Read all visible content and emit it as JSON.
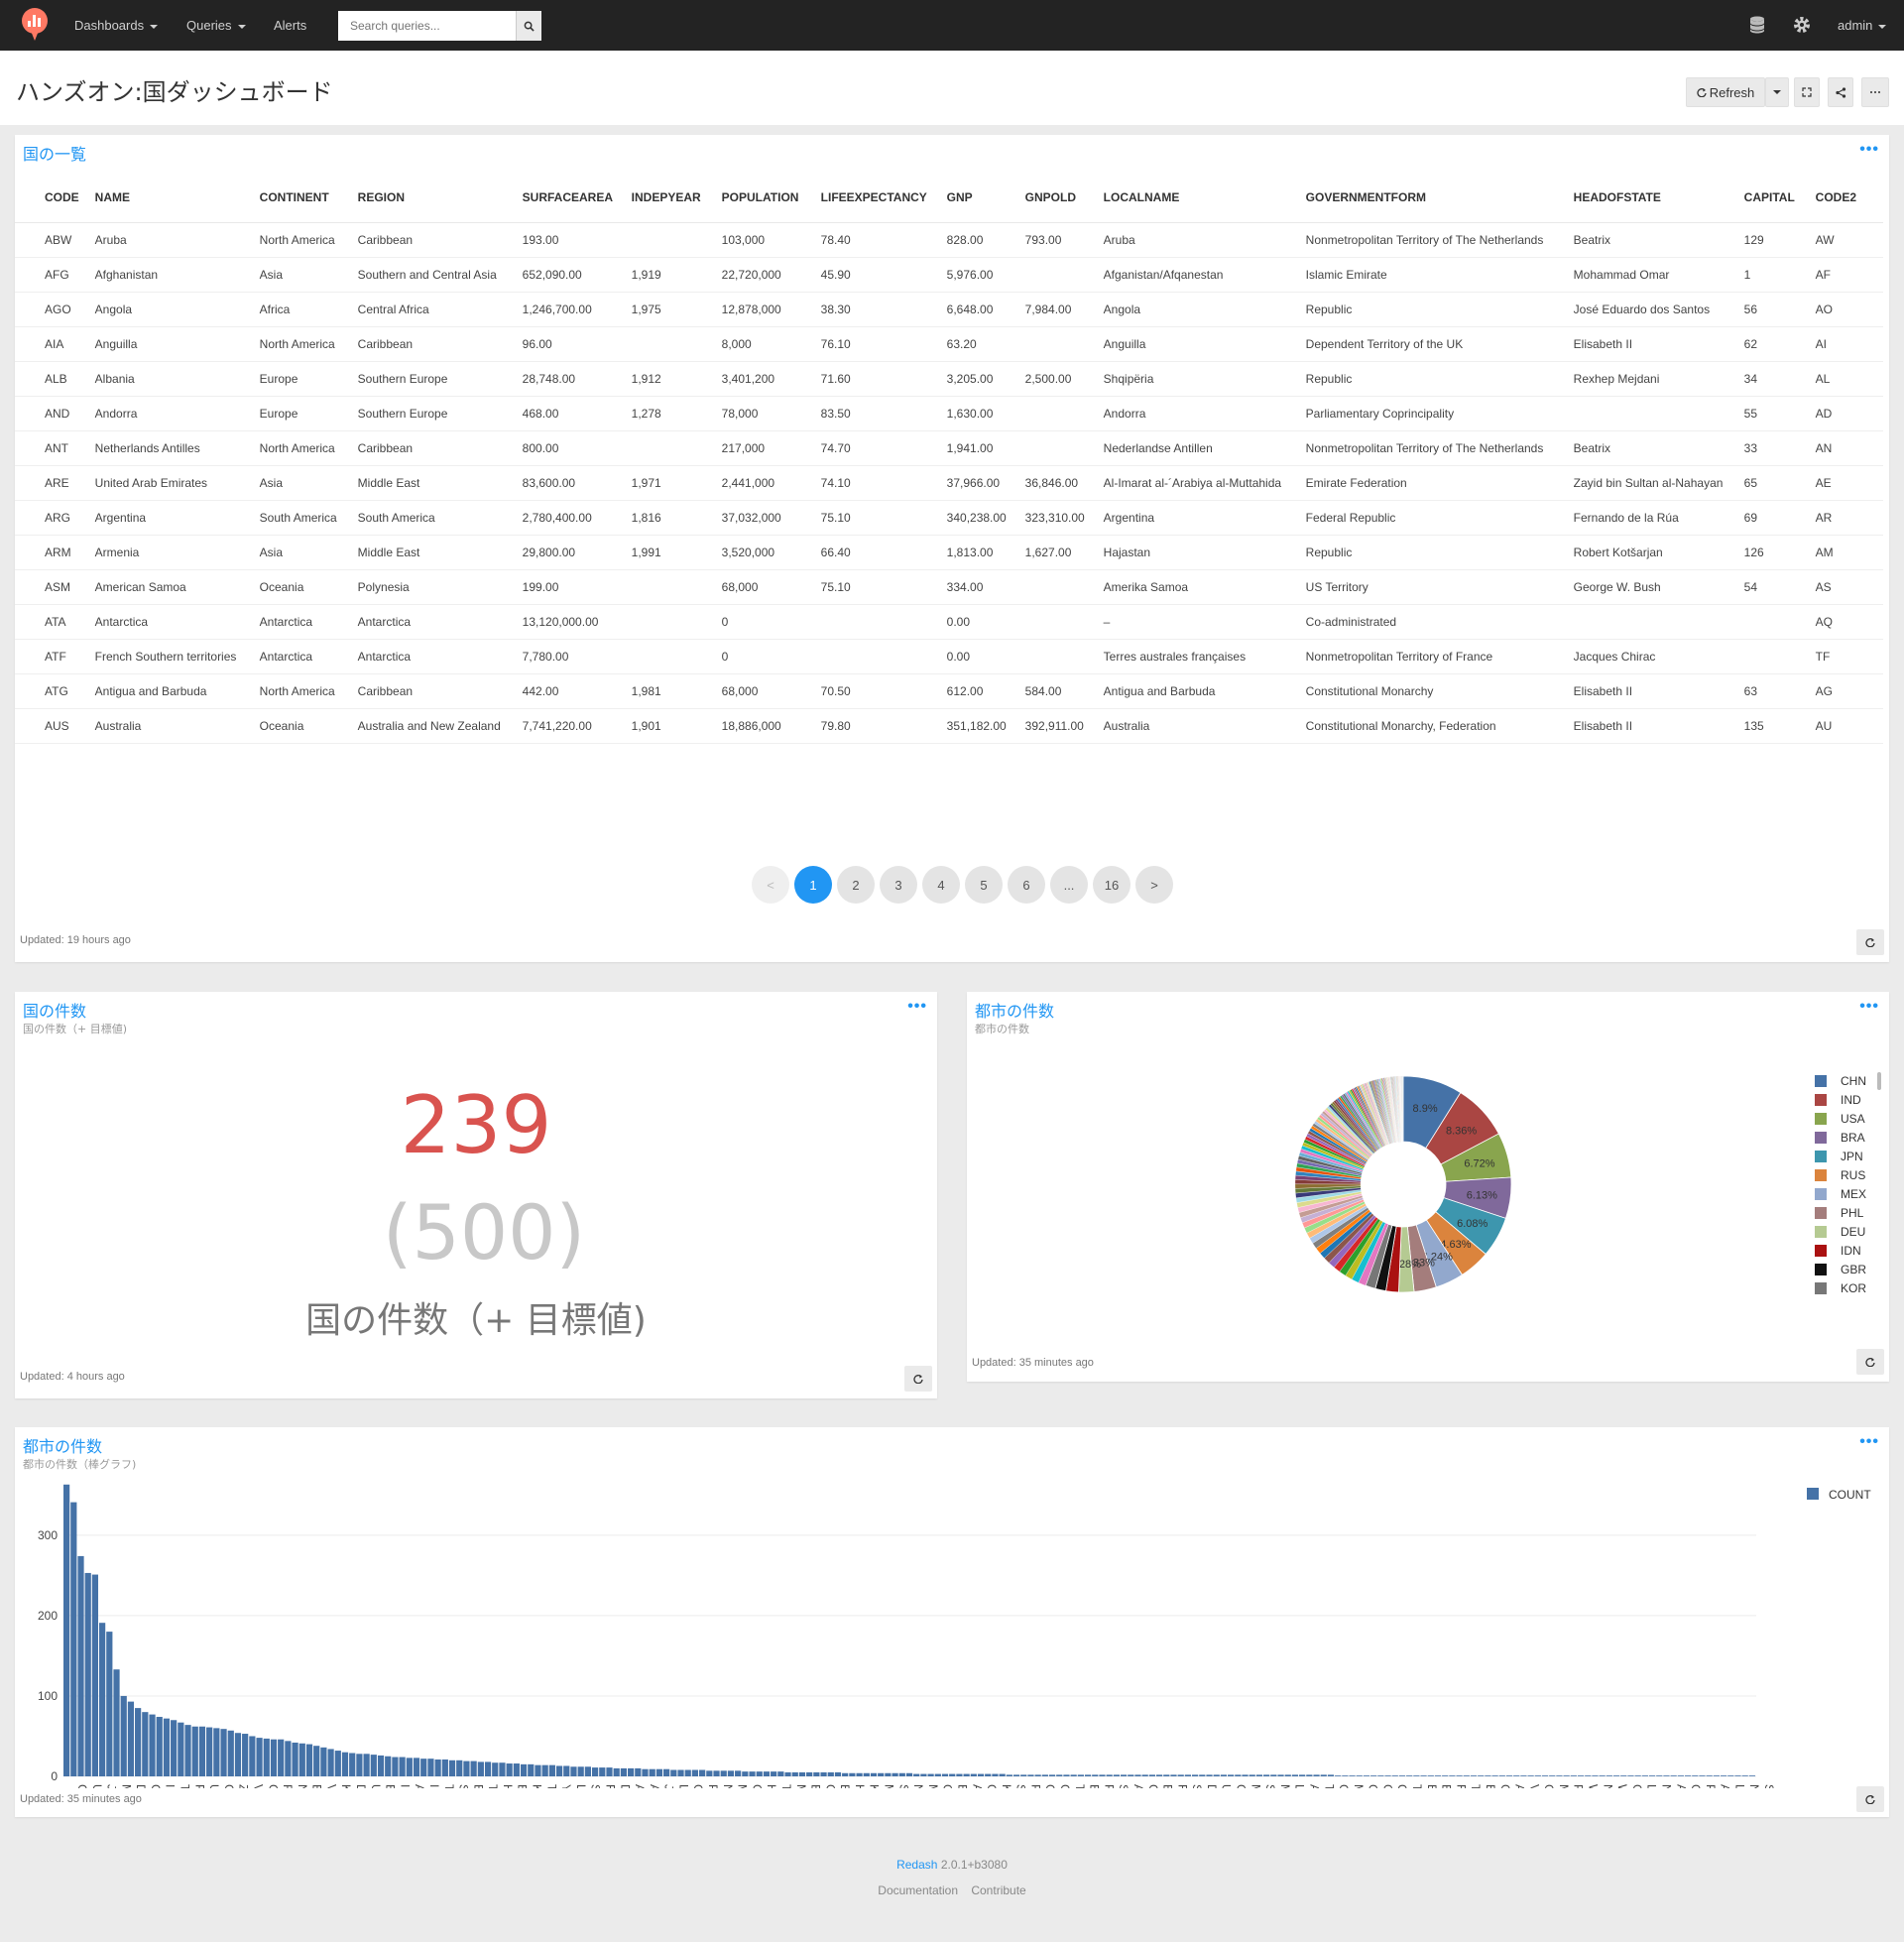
{
  "nav": {
    "dashboards_label": "Dashboards",
    "queries_label": "Queries",
    "alerts_label": "Alerts",
    "search_placeholder": "Search queries...",
    "user_label": "admin"
  },
  "header": {
    "title": "ハンズオン:国ダッシュボード",
    "refresh_label": "Refresh"
  },
  "table_widget": {
    "title": "国の一覧",
    "columns": [
      "CODE",
      "NAME",
      "CONTINENT",
      "REGION",
      "SURFACEAREA",
      "INDEPYEAR",
      "POPULATION",
      "LIFEEXPECTANCY",
      "GNP",
      "GNPOLD",
      "LOCALNAME",
      "GOVERNMENTFORM",
      "HEADOFSTATE",
      "CAPITAL",
      "CODE2"
    ],
    "rows": [
      [
        "ABW",
        "Aruba",
        "North America",
        "Caribbean",
        "193.00",
        "",
        "103,000",
        "78.40",
        "828.00",
        "793.00",
        "Aruba",
        "Nonmetropolitan Territory of The Netherlands",
        "Beatrix",
        "129",
        "AW"
      ],
      [
        "AFG",
        "Afghanistan",
        "Asia",
        "Southern and Central Asia",
        "652,090.00",
        "1,919",
        "22,720,000",
        "45.90",
        "5,976.00",
        "",
        "Afganistan/Afqanestan",
        "Islamic Emirate",
        "Mohammad Omar",
        "1",
        "AF"
      ],
      [
        "AGO",
        "Angola",
        "Africa",
        "Central Africa",
        "1,246,700.00",
        "1,975",
        "12,878,000",
        "38.30",
        "6,648.00",
        "7,984.00",
        "Angola",
        "Republic",
        "José Eduardo dos Santos",
        "56",
        "AO"
      ],
      [
        "AIA",
        "Anguilla",
        "North America",
        "Caribbean",
        "96.00",
        "",
        "8,000",
        "76.10",
        "63.20",
        "",
        "Anguilla",
        "Dependent Territory of the UK",
        "Elisabeth II",
        "62",
        "AI"
      ],
      [
        "ALB",
        "Albania",
        "Europe",
        "Southern Europe",
        "28,748.00",
        "1,912",
        "3,401,200",
        "71.60",
        "3,205.00",
        "2,500.00",
        "Shqipëria",
        "Republic",
        "Rexhep Mejdani",
        "34",
        "AL"
      ],
      [
        "AND",
        "Andorra",
        "Europe",
        "Southern Europe",
        "468.00",
        "1,278",
        "78,000",
        "83.50",
        "1,630.00",
        "",
        "Andorra",
        "Parliamentary Coprincipality",
        "",
        "55",
        "AD"
      ],
      [
        "ANT",
        "Netherlands Antilles",
        "North America",
        "Caribbean",
        "800.00",
        "",
        "217,000",
        "74.70",
        "1,941.00",
        "",
        "Nederlandse Antillen",
        "Nonmetropolitan Territory of The Netherlands",
        "Beatrix",
        "33",
        "AN"
      ],
      [
        "ARE",
        "United Arab Emirates",
        "Asia",
        "Middle East",
        "83,600.00",
        "1,971",
        "2,441,000",
        "74.10",
        "37,966.00",
        "36,846.00",
        "Al-Imarat al-´Arabiya al-Muttahida",
        "Emirate Federation",
        "Zayid bin Sultan al-Nahayan",
        "65",
        "AE"
      ],
      [
        "ARG",
        "Argentina",
        "South America",
        "South America",
        "2,780,400.00",
        "1,816",
        "37,032,000",
        "75.10",
        "340,238.00",
        "323,310.00",
        "Argentina",
        "Federal Republic",
        "Fernando de la Rúa",
        "69",
        "AR"
      ],
      [
        "ARM",
        "Armenia",
        "Asia",
        "Middle East",
        "29,800.00",
        "1,991",
        "3,520,000",
        "66.40",
        "1,813.00",
        "1,627.00",
        "Hajastan",
        "Republic",
        "Robert Kotšarjan",
        "126",
        "AM"
      ],
      [
        "ASM",
        "American Samoa",
        "Oceania",
        "Polynesia",
        "199.00",
        "",
        "68,000",
        "75.10",
        "334.00",
        "",
        "Amerika Samoa",
        "US Territory",
        "George W. Bush",
        "54",
        "AS"
      ],
      [
        "ATA",
        "Antarctica",
        "Antarctica",
        "Antarctica",
        "13,120,000.00",
        "",
        "0",
        "",
        "0.00",
        "",
        "–",
        "Co-administrated",
        "",
        "",
        "AQ"
      ],
      [
        "ATF",
        "French Southern territories",
        "Antarctica",
        "Antarctica",
        "7,780.00",
        "",
        "0",
        "",
        "0.00",
        "",
        "Terres australes françaises",
        "Nonmetropolitan Territory of France",
        "Jacques Chirac",
        "",
        "TF"
      ],
      [
        "ATG",
        "Antigua and Barbuda",
        "North America",
        "Caribbean",
        "442.00",
        "1,981",
        "68,000",
        "70.50",
        "612.00",
        "584.00",
        "Antigua and Barbuda",
        "Constitutional Monarchy",
        "Elisabeth II",
        "63",
        "AG"
      ],
      [
        "AUS",
        "Australia",
        "Oceania",
        "Australia and New Zealand",
        "7,741,220.00",
        "1,901",
        "18,886,000",
        "79.80",
        "351,182.00",
        "392,911.00",
        "Australia",
        "Constitutional Monarchy, Federation",
        "Elisabeth II",
        "135",
        "AU"
      ]
    ],
    "pages": [
      "<",
      "1",
      "2",
      "3",
      "4",
      "5",
      "6",
      "...",
      "16",
      ">"
    ],
    "active_page": "1",
    "updated": "Updated: 19 hours ago"
  },
  "counter_widget": {
    "title": "国の件数",
    "subtitle": "国の件数（+ 目標値)",
    "value": "239",
    "target": "(500)",
    "label": "国の件数（+ 目標値)",
    "updated": "Updated: 4 hours ago",
    "value_color": "#d9534f",
    "target_color": "#c8c8c8"
  },
  "pie_widget": {
    "title": "都市の件数",
    "subtitle": "都市の件数",
    "updated": "Updated: 35 minutes ago"
  },
  "bar_widget": {
    "title": "都市の件数",
    "subtitle": "都市の件数（棒グラフ)",
    "updated": "Updated: 35 minutes ago"
  },
  "footer": {
    "brand": "Redash",
    "version": "2.0.1+b3080",
    "documentation": "Documentation",
    "contribute": "Contribute"
  },
  "chart_data": [
    {
      "type": "pie",
      "legend": [
        "CHN",
        "IND",
        "USA",
        "BRA",
        "JPN",
        "RUS",
        "MEX",
        "PHL",
        "DEU",
        "IDN",
        "GBR",
        "KOR"
      ],
      "slices": [
        {
          "label": "CHN",
          "value": 8.9,
          "color": "#4572a7"
        },
        {
          "label": "IND",
          "value": 8.36,
          "color": "#aa4643"
        },
        {
          "label": "USA",
          "value": 6.72,
          "color": "#89a54e"
        },
        {
          "label": "BRA",
          "value": 6.13,
          "color": "#80699b"
        },
        {
          "label": "JPN",
          "value": 6.08,
          "color": "#3d96ae"
        },
        {
          "label": "RUS",
          "value": 4.63,
          "color": "#db843d"
        },
        {
          "label": "MEX",
          "value": 4.24,
          "color": "#92a8cd"
        },
        {
          "label": "PHL",
          "value": 3.33,
          "color": "#a47d7c"
        },
        {
          "label": "DEU",
          "value": 2.28,
          "color": "#b5ca92"
        },
        {
          "label": "IDN",
          "value": 1.89,
          "color": "#aa1111"
        },
        {
          "label": "GBR",
          "value": 1.6,
          "color": "#111111"
        },
        {
          "label": "KOR",
          "value": 1.5,
          "color": "#777777"
        }
      ],
      "slice_labels": [
        "8.9%",
        "8.36%",
        "6.72%",
        "6.13%",
        "6.08%",
        "4.63%",
        "4.24%",
        "3.33%",
        "2.28%"
      ],
      "other_colors": [
        "#e377c2",
        "#17becf",
        "#bcbd22",
        "#2ca02c",
        "#d62728",
        "#9467bd",
        "#8c564b",
        "#1f77b4",
        "#ff7f0e",
        "#7f7f7f",
        "#aec7e8",
        "#ffbb78",
        "#98df8a",
        "#ff9896",
        "#c5b0d5",
        "#c49c94",
        "#f7b6d2",
        "#dbdb8d",
        "#9edae5",
        "#393b79",
        "#637939",
        "#8c6d31",
        "#843c39",
        "#7b4173",
        "#3182bd",
        "#e6550d",
        "#31a354",
        "#756bb1",
        "#636363",
        "#6baed6"
      ]
    },
    {
      "type": "bar",
      "series": [
        {
          "name": "COUNT",
          "color": "#4572a7"
        }
      ],
      "yticks": [
        "0",
        "100",
        "200",
        "300"
      ],
      "ylim": [
        0,
        380
      ],
      "values": [
        363,
        341,
        274,
        253,
        251,
        191,
        180,
        133,
        100,
        93,
        85,
        80,
        77,
        74,
        72,
        70,
        67,
        64,
        62,
        62,
        61,
        60,
        59,
        57,
        54,
        53,
        50,
        48,
        47,
        46,
        46,
        44,
        42,
        41,
        40,
        38,
        36,
        34,
        32,
        30,
        29,
        28,
        28,
        27,
        26,
        25,
        24,
        24,
        23,
        23,
        22,
        22,
        21,
        21,
        20,
        20,
        19,
        19,
        18,
        18,
        17,
        17,
        16,
        16,
        15,
        15,
        14,
        14,
        14,
        13,
        13,
        12,
        12,
        12,
        11,
        11,
        11,
        10,
        10,
        10,
        10,
        9,
        9,
        9,
        9,
        8,
        8,
        8,
        8,
        8,
        7,
        7,
        7,
        7,
        7,
        6,
        6,
        6,
        6,
        6,
        6,
        5,
        5,
        5,
        5,
        5,
        5,
        5,
        5,
        4,
        4,
        4,
        4,
        4,
        4,
        4,
        4,
        4,
        4,
        3,
        3,
        3,
        3,
        3,
        3,
        3,
        3,
        3,
        3,
        3,
        3,
        3,
        2,
        2,
        2,
        2,
        2,
        2,
        2,
        2,
        2,
        2,
        2,
        2,
        2,
        2,
        2,
        2,
        2,
        2,
        2,
        2,
        2,
        2,
        2,
        2,
        2,
        2,
        2,
        2,
        2,
        2,
        2,
        2,
        2,
        2,
        2,
        2,
        2,
        2,
        2,
        2,
        2,
        2,
        2,
        2,
        2,
        2,
        1,
        1,
        1,
        1,
        1,
        1,
        1,
        1,
        1,
        1,
        1,
        1,
        1,
        1,
        1,
        1,
        1,
        1,
        1,
        1,
        1,
        1,
        1,
        1,
        1,
        1,
        1,
        1,
        1,
        1,
        1,
        1,
        1,
        1,
        1,
        1,
        1,
        1,
        1,
        1,
        1,
        1,
        1,
        1,
        1,
        1,
        1,
        1,
        1,
        1,
        1,
        1,
        1,
        1,
        1,
        1,
        1,
        1,
        1
      ],
      "xlabels": [
        "CHN",
        "USA",
        "JPN",
        "MEX",
        "DEU",
        "GBR",
        "IRN",
        "TUR",
        "PAK",
        "UKR",
        "CAN",
        "ZAF",
        "VEN",
        "COL",
        "ROM",
        "NLD",
        "BGD",
        "VNM",
        "KAZ",
        "DZA",
        "UZB",
        "BLR",
        "IRQ",
        "AUS",
        "ISR",
        "THA",
        "SDN",
        "BGR",
        "TZA",
        "HUN",
        "BEL",
        "KEN",
        "TUN",
        "YUG",
        "LKA",
        "SLV",
        "FIN",
        "DOM",
        "AUT",
        "ARE",
        "JOR",
        "LTU",
        "GEO",
        "PRY",
        "NPL",
        "MDG",
        "CHE",
        "HRV",
        "TKM",
        "MDA",
        "BEN",
        "GTM",
        "BIH",
        "HND",
        "KHM",
        "MUS",
        "SVK",
        "NER",
        "MLT",
        "GUM",
        "BLZ",
        "ASM",
        "COG",
        "KGZ",
        "SMR",
        "PYF",
        "GLP",
        "GMB",
        "TTO",
        "EST",
        "PAN",
        "SVN",
        "AIA",
        "CYP",
        "BHS",
        "FRO",
        "SHN",
        "DMA",
        "URY",
        "GUY",
        "MNG",
        "SLB",
        "MNP",
        "LUX",
        "ATG",
        "TKL",
        "GIB",
        "MSR",
        "COM",
        "GIN",
        "QAT",
        "TMP",
        "BRN",
        "ESH",
        "REU",
        "TON",
        "BDI",
        "CRI",
        "ABW",
        "VUT",
        "CCK",
        "MDV",
        "PCN",
        "WLF",
        "NAM",
        "WSM",
        "GRD",
        "LBR",
        "NCL",
        "ALB",
        "GRL",
        "PLW",
        "AND",
        "LCA",
        "NFK",
        "SGP"
      ]
    }
  ]
}
